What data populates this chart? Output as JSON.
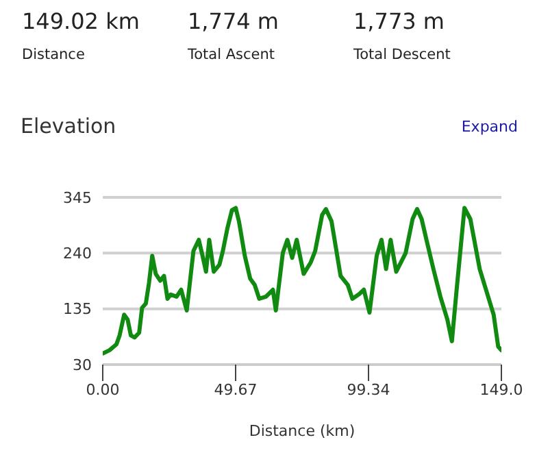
{
  "chart_data": {
    "type": "line",
    "title": "Elevation",
    "xlabel": "Distance (km)",
    "annotations": [
      "149.02 km",
      "Distance",
      "1,774 m",
      "Total Ascent",
      "1,773 m",
      "Total Descent",
      "Expand"
    ],
    "x": [
      0,
      2.5,
      5.1,
      6.3,
      8,
      9.3,
      10.5,
      11.9,
      13.6,
      14.7,
      16.1,
      17.3,
      18.5,
      19.8,
      21.5,
      22.9,
      24.2,
      25.4,
      27.6,
      29.3,
      31.4,
      33.9,
      35.9,
      37.3,
      38.6,
      39.8,
      41.5,
      43.6,
      44.9,
      46.6,
      48.3,
      49.7,
      50.9,
      53.1,
      55.1,
      56.8,
      58.5,
      61,
      63.6,
      64.7,
      67.3,
      69,
      70.8,
      72.5,
      75.1,
      77.7,
      79.4,
      82,
      83.4,
      85.5,
      88.9,
      91.6,
      93.3,
      95.9,
      97.6,
      99.7,
      102.4,
      104.2,
      105.9,
      107.6,
      109.7,
      113.2,
      115.8,
      117.5,
      119.2,
      121,
      123.6,
      126.2,
      128.8,
      130.5,
      132.2,
      135.2,
      137.4,
      140.9,
      143.5,
      146.1,
      147.8,
      149
    ],
    "series": [
      {
        "color": "#108a10",
        "values": [
          51,
          57,
          68,
          85,
          124,
          115,
          85,
          81,
          90,
          137,
          145,
          184,
          235,
          201,
          188,
          197,
          154,
          162,
          158,
          171,
          132,
          244,
          265,
          235,
          205,
          265,
          205,
          218,
          244,
          287,
          321,
          325,
          300,
          235,
          192,
          180,
          154,
          158,
          171,
          132,
          240,
          265,
          231,
          265,
          201,
          222,
          244,
          312,
          323,
          300,
          197,
          180,
          154,
          163,
          171,
          128,
          235,
          265,
          210,
          265,
          205,
          240,
          304,
          323,
          304,
          265,
          210,
          158,
          115,
          74,
          167,
          325,
          304,
          210,
          167,
          124,
          64,
          57
        ]
      }
    ],
    "xlim": [
      0,
      149
    ],
    "xticks": [
      {
        "value": 0,
        "label": "0.00"
      },
      49.67,
      99.34,
      {
        "value": 149,
        "label": "149.0"
      }
    ],
    "ylim": [
      30,
      345
    ],
    "yticks": [
      30,
      135,
      240,
      345
    ],
    "grid": "y",
    "marker": "none",
    "line_style": "solid",
    "legend": false
  }
}
